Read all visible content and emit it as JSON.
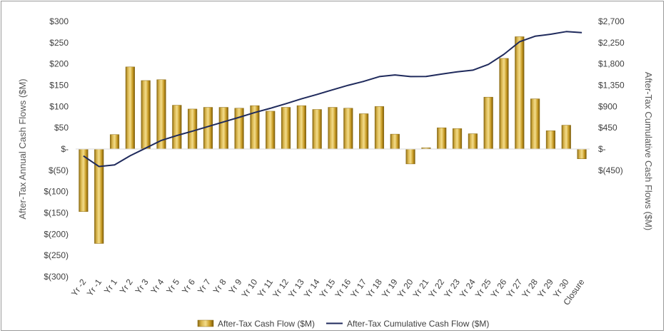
{
  "chart_data": {
    "type": "bar+line",
    "categories": [
      "Yr -2",
      "Yr -1",
      "Yr 1",
      "Yr 2",
      "Yr 3",
      "Yr 4",
      "Yr 5",
      "Yr 6",
      "Yr 7",
      "Yr 8",
      "Yr 9",
      "Yr 10",
      "Yr 11",
      "Yr 12",
      "Yr 13",
      "Yr 14",
      "Yr 15",
      "Yr 16",
      "Yr 17",
      "Yr 18",
      "Yr 19",
      "Yr 20",
      "Yr 21",
      "Yr 22",
      "Yr 23",
      "Yr 24",
      "Yr 25",
      "Yr 26",
      "Yr 27",
      "Yr 28",
      "Yr 29",
      "Yr 30",
      "Closure"
    ],
    "series": [
      {
        "name": "After-Tax Cash Flow ($M)",
        "type": "bar",
        "axis": "left",
        "color": "#C9A227",
        "values": [
          -147,
          -222,
          34,
          193,
          161,
          163,
          103,
          94,
          98,
          98,
          96,
          102,
          89,
          98,
          102,
          93,
          98,
          96,
          83,
          100,
          35,
          -35,
          3,
          50,
          48,
          36,
          122,
          213,
          264,
          118,
          43,
          56,
          -23
        ]
      },
      {
        "name": "After-Tax Cumulative Cash Flow ($M)",
        "type": "line",
        "axis": "right",
        "color": "#1F2A5C",
        "values": [
          -147,
          -369,
          -335,
          -142,
          19,
          182,
          285,
          379,
          477,
          575,
          671,
          773,
          862,
          960,
          1062,
          1155,
          1253,
          1349,
          1432,
          1532,
          1567,
          1532,
          1535,
          1585,
          1633,
          1669,
          1791,
          2004,
          2268,
          2386,
          2429,
          2485,
          2462
        ]
      }
    ],
    "y_left": {
      "label": "After-Tax Annual Cash Flows ($M)",
      "ylim": [
        -300,
        300
      ],
      "ticks": [
        300,
        250,
        200,
        150,
        100,
        50,
        0,
        -50,
        -100,
        -150,
        -200,
        -250,
        -300
      ],
      "tick_labels": [
        "$300",
        "$250",
        "$200",
        "$150",
        "$100",
        "$50",
        "$-",
        "$(50)",
        "$(100)",
        "$(150)",
        "$(200)",
        "$(250)",
        "$(300)"
      ]
    },
    "y_right": {
      "label": "After-Tax Cumulative Cash Flows ($M)",
      "ylim": [
        -2700,
        2700
      ],
      "ticks": [
        2700,
        2250,
        1800,
        1350,
        900,
        450,
        0,
        -450
      ],
      "tick_labels": [
        "$2,700",
        "$2,250",
        "$1,800",
        "$1,350",
        "$900",
        "$450",
        "$-",
        "$(450)"
      ]
    },
    "grid": false,
    "legend": "bottom"
  }
}
